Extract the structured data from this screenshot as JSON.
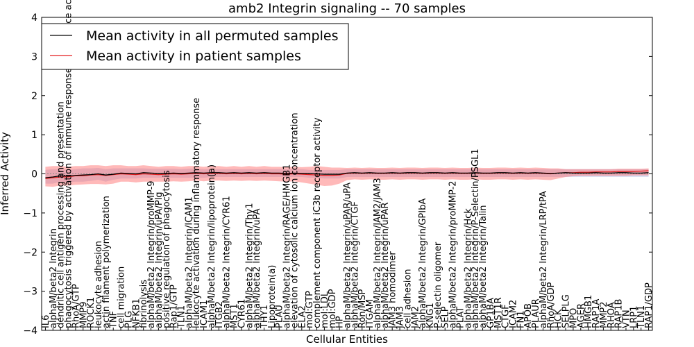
{
  "chart_data": {
    "type": "line",
    "title": "amb2 Integrin signaling -- 70 samples",
    "xlabel": "Cellular Entities",
    "ylabel": "Inferred Activity",
    "ylim": [
      -4,
      4
    ],
    "yticks": [
      -4,
      -3,
      -2,
      -1,
      0,
      1,
      2,
      3,
      4
    ],
    "legend_position": "top-left",
    "grid": false,
    "categories": [
      "IL6",
      "alphaM/beta2 Integrin",
      "dendritic cell antigen processing and presentation",
      "phagocytosis triggered by activation of immune response cell surface activating receptor",
      "RhoA/GTP",
      "MMP9",
      "ROCK1",
      "leukocyte adhesion",
      "actin filament polymerization",
      "TNF",
      "cell migration",
      "PLG",
      "NFKB1",
      "fibrinolysis",
      "alphaM/beta2 Integrin/proMMP-9",
      "alphaM/beta2 Integrin/uPA/Plg",
      "positive regulation of phagocytosis",
      "Rap1/GTP",
      "TLN1",
      "alphaM/beta2 Integrin/ICAM1",
      "leukocyte activation during inflammatory response",
      "ICAM1",
      "alphaM/beta2 Integrin/lipoprotein(a)",
      "ITGB2",
      "alphaM/beta2 Integrin/CYR61",
      "MST1",
      "CYR61",
      "alphaM/beta2 Integrin/Thy1",
      "alphaM/beta2 Integrin/uPA",
      "THY1",
      "Lipoprotein(a)",
      "PLAU",
      "alphaM/beta2 Integrin/RAGE/HMGB1",
      "elevation of cytosolic calcium ion concentration",
      "ELA2",
      "mol:GTP",
      "complement component iC3b receptor activity",
      "mol:LDL",
      "mol:GDP",
      "HP",
      "alphaM/beta2 Integrin/uPAR/uPA",
      "alphaM/beta2 Integrin/CTGF",
      "Ron/MSP",
      "ITGAM",
      "alphaM/beta2 Integrin/JAM2/JAM3",
      "alphaM/beta2 Integrin/uPAR",
      "JAM3 homodimer",
      "JAM3",
      "cell adhesion",
      "JAM2",
      "alphaM/beta2 Integrin/GPIbA",
      "KNG1",
      "P-selectin oligomer",
      "SELP",
      "alphaM/beta2 Integrin/proMMP-2",
      "PLAT",
      "alphaM/beta2 Integrin/Hck",
      "alphaM/beta2 Integrin/P-Selectin/PSGL1",
      "alphaM/beta2 Integrin/Talin",
      "GP1BA",
      "MST1R",
      "CTGF",
      "ICAM2",
      "FN1",
      "APOB",
      "PLAUR",
      "alphaM/beta2 Integrin/LRP/tPA",
      "RhoA/GDP",
      "HCK",
      "SELPLG",
      "MPO",
      "AGER",
      "HMGB1",
      "RAP1A",
      "MMP2",
      "RHOA",
      "RAP1B",
      "VTN",
      "LRP1",
      "TLN1",
      "RAP1/GDP"
    ],
    "series": [
      {
        "name": "Mean activity in all permuted samples",
        "color": "#000000",
        "values": [
          -0.1,
          -0.08,
          -0.05,
          -0.06,
          -0.04,
          -0.03,
          -0.02,
          0.0,
          -0.03,
          -0.01,
          0.02,
          0.01,
          0.0,
          0.03,
          0.02,
          0.01,
          0.01,
          0.02,
          0.01,
          0.02,
          0.03,
          0.02,
          0.03,
          0.03,
          0.02,
          0.03,
          0.02,
          0.03,
          0.02,
          0.03,
          0.02,
          0.02,
          0.01,
          0.02,
          0.01,
          0.01,
          0.0,
          -0.01,
          -0.01,
          -0.01,
          0.02,
          0.03,
          0.02,
          0.03,
          0.02,
          0.02,
          0.03,
          0.02,
          0.03,
          0.03,
          0.02,
          0.03,
          0.03,
          0.02,
          0.03,
          0.02,
          0.02,
          0.03,
          0.02,
          0.02,
          0.03,
          0.03,
          0.02,
          0.03,
          0.02,
          0.03,
          0.02,
          0.01,
          0.02,
          0.03,
          0.02,
          0.02,
          0.02,
          0.03,
          0.02,
          0.02,
          0.03,
          0.03,
          0.02,
          0.02,
          0.03
        ],
        "band_low": [
          -0.25,
          -0.25,
          -0.2,
          -0.22,
          -0.2,
          -0.2,
          -0.18,
          -0.15,
          -0.2,
          -0.15,
          -0.12,
          -0.12,
          -0.12,
          -0.1,
          -0.1,
          -0.1,
          -0.1,
          -0.1,
          -0.1,
          -0.1,
          -0.1,
          -0.1,
          -0.08,
          -0.08,
          -0.08,
          -0.08,
          -0.08,
          -0.08,
          -0.08,
          -0.08,
          -0.08,
          -0.08,
          -0.08,
          -0.08,
          -0.08,
          -0.1,
          -0.1,
          -0.12,
          -0.12,
          -0.12,
          -0.08,
          -0.08,
          -0.08,
          -0.08,
          -0.08,
          -0.08,
          -0.08,
          -0.08,
          -0.08,
          -0.08,
          -0.08,
          -0.08,
          -0.08,
          -0.08,
          -0.08,
          -0.08,
          -0.08,
          -0.08,
          -0.08,
          -0.08,
          -0.08,
          -0.08,
          -0.08,
          -0.08,
          -0.08,
          -0.08,
          -0.08,
          -0.08,
          -0.08,
          -0.08,
          -0.08,
          -0.08,
          -0.08,
          -0.08,
          -0.08,
          -0.08,
          -0.08,
          -0.08,
          -0.08,
          -0.08,
          -0.08
        ],
        "band_high": [
          0.1,
          0.12,
          0.12,
          0.1,
          0.12,
          0.14,
          0.14,
          0.15,
          0.12,
          0.14,
          0.14,
          0.14,
          0.14,
          0.14,
          0.13,
          0.13,
          0.13,
          0.13,
          0.12,
          0.13,
          0.13,
          0.12,
          0.12,
          0.12,
          0.12,
          0.12,
          0.12,
          0.12,
          0.12,
          0.12,
          0.12,
          0.12,
          0.12,
          0.12,
          0.12,
          0.1,
          0.1,
          0.1,
          0.1,
          0.1,
          0.12,
          0.12,
          0.12,
          0.12,
          0.12,
          0.12,
          0.12,
          0.12,
          0.12,
          0.12,
          0.12,
          0.12,
          0.12,
          0.12,
          0.12,
          0.12,
          0.12,
          0.12,
          0.12,
          0.12,
          0.12,
          0.12,
          0.12,
          0.12,
          0.12,
          0.12,
          0.12,
          0.12,
          0.12,
          0.12,
          0.12,
          0.12,
          0.12,
          0.12,
          0.12,
          0.12,
          0.12,
          0.12,
          0.12,
          0.12,
          0.12
        ]
      },
      {
        "name": "Mean activity in patient samples",
        "color": "#e31a1c",
        "values": [
          -0.12,
          -0.1,
          -0.08,
          -0.08,
          -0.05,
          -0.05,
          -0.03,
          -0.02,
          -0.04,
          -0.02,
          0.0,
          -0.01,
          -0.02,
          0.0,
          -0.01,
          -0.02,
          -0.01,
          0.0,
          -0.01,
          0.0,
          0.01,
          0.0,
          0.01,
          0.01,
          0.0,
          0.01,
          0.0,
          0.01,
          0.0,
          0.01,
          0.0,
          0.0,
          -0.01,
          0.0,
          -0.01,
          -0.02,
          -0.03,
          -0.04,
          -0.04,
          -0.03,
          0.01,
          0.02,
          0.01,
          0.02,
          0.01,
          0.01,
          0.02,
          0.01,
          0.02,
          0.02,
          0.01,
          0.02,
          0.02,
          0.01,
          0.02,
          0.01,
          0.01,
          0.02,
          0.01,
          0.01,
          0.02,
          0.02,
          0.01,
          0.02,
          0.01,
          0.02,
          0.01,
          0.0,
          0.02,
          0.03,
          0.03,
          0.04,
          0.04,
          0.05,
          0.05,
          0.05,
          0.06,
          0.06,
          0.06,
          0.07,
          0.08
        ],
        "band_low": [
          -0.32,
          -0.33,
          -0.3,
          -0.3,
          -0.28,
          -0.27,
          -0.26,
          -0.26,
          -0.27,
          -0.25,
          -0.2,
          -0.2,
          -0.22,
          -0.2,
          -0.2,
          -0.2,
          -0.2,
          -0.19,
          -0.2,
          -0.19,
          -0.17,
          -0.19,
          -0.17,
          -0.17,
          -0.18,
          -0.17,
          -0.18,
          -0.17,
          -0.18,
          -0.17,
          -0.18,
          -0.19,
          -0.2,
          -0.19,
          -0.22,
          -0.25,
          -0.28,
          -0.31,
          -0.3,
          -0.25,
          -0.16,
          -0.14,
          -0.15,
          -0.14,
          -0.15,
          -0.15,
          -0.14,
          -0.15,
          -0.14,
          -0.14,
          -0.15,
          -0.14,
          -0.14,
          -0.15,
          -0.14,
          -0.15,
          -0.15,
          -0.14,
          -0.15,
          -0.15,
          -0.14,
          -0.14,
          -0.15,
          -0.14,
          -0.15,
          -0.14,
          -0.15,
          -0.16,
          -0.12,
          -0.08,
          -0.06,
          -0.05,
          -0.05,
          -0.05,
          -0.05,
          -0.05,
          -0.05,
          -0.05,
          -0.04,
          -0.04,
          -0.04
        ],
        "band_high": [
          0.18,
          0.2,
          0.2,
          0.18,
          0.2,
          0.2,
          0.22,
          0.22,
          0.2,
          0.22,
          0.22,
          0.2,
          0.2,
          0.22,
          0.2,
          0.18,
          0.2,
          0.2,
          0.18,
          0.2,
          0.2,
          0.18,
          0.2,
          0.2,
          0.18,
          0.2,
          0.18,
          0.2,
          0.18,
          0.2,
          0.18,
          0.18,
          0.17,
          0.18,
          0.17,
          0.18,
          0.2,
          0.18,
          0.16,
          0.16,
          0.15,
          0.16,
          0.15,
          0.16,
          0.15,
          0.15,
          0.16,
          0.15,
          0.16,
          0.16,
          0.15,
          0.16,
          0.16,
          0.15,
          0.16,
          0.15,
          0.15,
          0.16,
          0.15,
          0.15,
          0.16,
          0.16,
          0.15,
          0.16,
          0.15,
          0.16,
          0.15,
          0.14,
          0.14,
          0.12,
          0.12,
          0.12,
          0.12,
          0.12,
          0.12,
          0.12,
          0.13,
          0.13,
          0.13,
          0.13,
          0.14
        ]
      }
    ]
  }
}
